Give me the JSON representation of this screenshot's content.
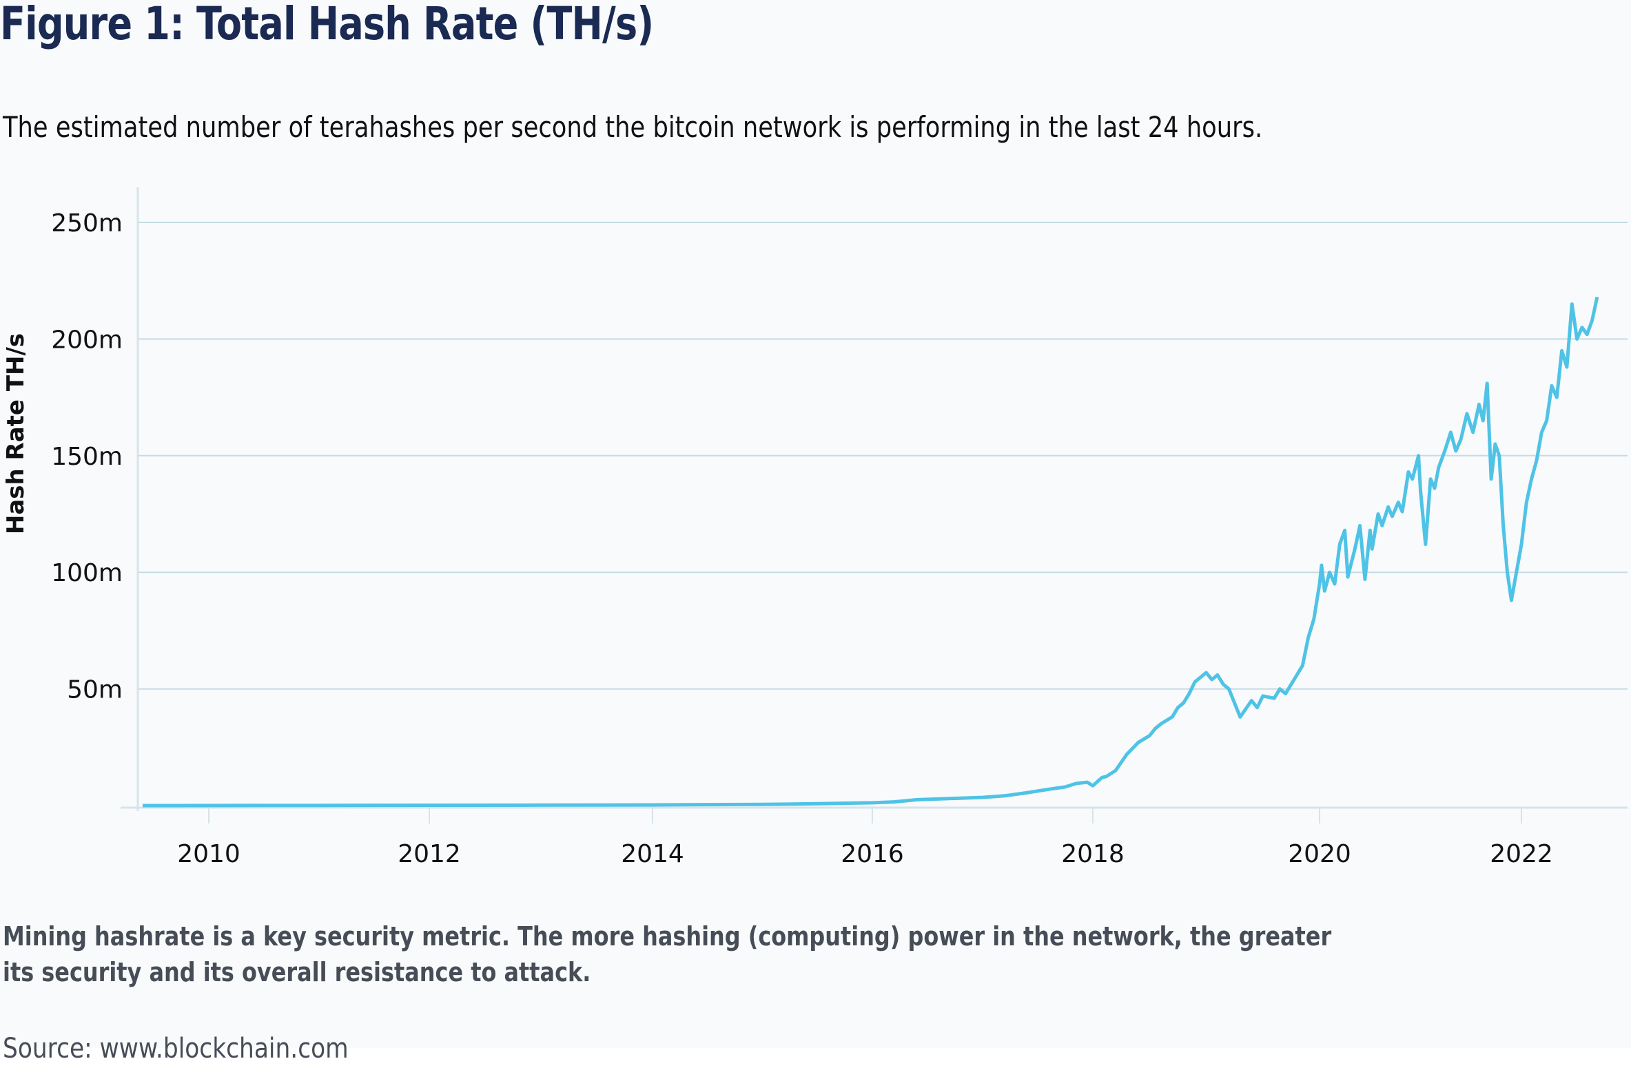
{
  "header": {
    "title": "Figure 1: Total Hash Rate (TH/s)",
    "subtitle": "The estimated number of terahashes per second the bitcoin network is performing in the last 24 hours."
  },
  "footer": {
    "note_line1": "Mining hashrate is a key security metric. The more hashing (computing) power in the network, the greater",
    "note_line2": "its security and its overall resistance to attack.",
    "source": "Source: www.blockchain.com"
  },
  "colors": {
    "line": "#4fc3e6",
    "grid": "#c5dbe3",
    "title": "#1b2a52",
    "note": "#474d57",
    "background": "#f8fafc"
  },
  "chart_data": {
    "type": "line",
    "title": "Figure 1: Total Hash Rate (TH/s)",
    "xlabel": "",
    "ylabel": "Hash Rate TH/s",
    "xlim": [
      2009.4,
      2023.3
    ],
    "ylim": [
      0,
      260
    ],
    "y_unit": "m (millions TH/s)",
    "x_ticks": [
      2010,
      2012,
      2014,
      2016,
      2018,
      2020,
      2022
    ],
    "x_tick_labels": [
      "2010",
      "2012",
      "2014",
      "2016",
      "2018",
      "2020",
      "2022"
    ],
    "y_ticks": [
      50,
      100,
      150,
      200,
      250
    ],
    "y_tick_labels": [
      "50m",
      "100m",
      "150m",
      "200m",
      "250m"
    ],
    "grid": true,
    "legend": "none",
    "series": [
      {
        "name": "Total Hash Rate (TH/s)",
        "x": [
          2009.4,
          2011.0,
          2013.0,
          2014.0,
          2014.5,
          2015.0,
          2015.5,
          2016.0,
          2016.2,
          2016.4,
          2016.7,
          2017.0,
          2017.2,
          2017.4,
          2017.6,
          2017.75,
          2017.85,
          2017.95,
          2018.0,
          2018.08,
          2018.12,
          2018.2,
          2018.3,
          2018.4,
          2018.5,
          2018.55,
          2018.6,
          2018.7,
          2018.75,
          2018.8,
          2018.85,
          2018.9,
          2018.95,
          2019.0,
          2019.05,
          2019.1,
          2019.15,
          2019.2,
          2019.3,
          2019.4,
          2019.45,
          2019.5,
          2019.6,
          2019.65,
          2019.7,
          2019.75,
          2019.8,
          2019.85,
          2019.9,
          2019.95,
          2020.0,
          2020.02,
          2020.05,
          2020.1,
          2020.15,
          2020.2,
          2020.25,
          2020.28,
          2020.35,
          2020.4,
          2020.45,
          2020.5,
          2020.52,
          2020.58,
          2020.62,
          2020.68,
          2020.72,
          2020.78,
          2020.82,
          2020.88,
          2020.92,
          2020.98,
          2021.0,
          2021.05,
          2021.1,
          2021.14,
          2021.18,
          2021.24,
          2021.3,
          2021.35,
          2021.4,
          2021.46,
          2021.52,
          2021.58,
          2021.62,
          2021.66,
          2021.7,
          2021.74,
          2021.78,
          2021.82,
          2021.86,
          2021.9,
          2021.95,
          2022.0,
          2022.05,
          2022.1,
          2022.15,
          2022.2,
          2022.25,
          2022.3,
          2022.35,
          2022.4,
          2022.45,
          2022.5,
          2022.55,
          2022.6,
          2022.65,
          2022.7,
          2022.75
        ],
        "values": [
          0,
          0.1,
          0.2,
          0.3,
          0.4,
          0.5,
          0.8,
          1.2,
          1.6,
          2.5,
          3.0,
          3.5,
          4.2,
          5.5,
          7.0,
          8.0,
          9.5,
          10.0,
          8.5,
          12.0,
          12.5,
          15.0,
          22.0,
          27.0,
          30.0,
          33.0,
          35.0,
          38.0,
          42.0,
          44.0,
          48.0,
          53.0,
          55.0,
          57.0,
          54.0,
          56.0,
          52.0,
          50.0,
          38.0,
          45.0,
          42.0,
          47.0,
          46.0,
          50.0,
          48.0,
          52.0,
          56.0,
          60.0,
          72.0,
          80.0,
          95.0,
          103.0,
          92.0,
          100.0,
          95.0,
          112.0,
          118.0,
          98.0,
          110.0,
          120.0,
          97.0,
          118.0,
          110.0,
          125.0,
          120.0,
          128.0,
          124.0,
          130.0,
          126.0,
          143.0,
          140.0,
          150.0,
          135.0,
          112.0,
          140.0,
          136.0,
          145.0,
          152.0,
          160.0,
          152.0,
          157.0,
          168.0,
          160.0,
          172.0,
          165.0,
          181.0,
          140.0,
          155.0,
          150.0,
          120.0,
          100.0,
          88.0,
          100.0,
          112.0,
          130.0,
          140.0,
          148.0,
          160.0,
          165.0,
          180.0,
          175.0,
          195.0,
          188.0,
          215.0,
          200.0,
          205.0,
          202.0,
          208.0,
          218.0
        ]
      }
    ]
  }
}
